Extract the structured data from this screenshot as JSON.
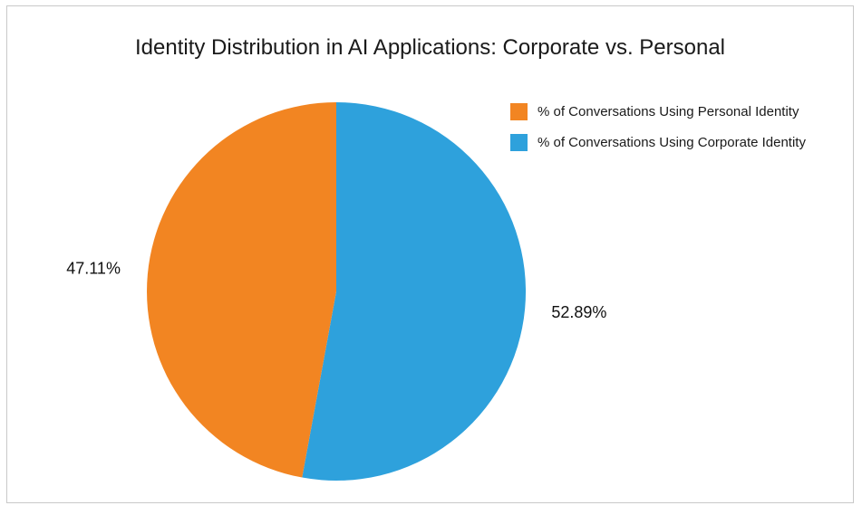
{
  "chart_data": {
    "type": "pie",
    "title": "Identity Distribution in AI Applications: Corporate vs. Personal",
    "slices": [
      {
        "label": "% of Conversations Using Corporate Identity",
        "value": 52.89,
        "display": "52.89%",
        "color": "#2ea1dc"
      },
      {
        "label": "% of Conversations Using Personal Identity",
        "value": 47.11,
        "display": "47.11%",
        "color": "#f28522"
      }
    ],
    "legend": {
      "placement": "top-right",
      "entries": [
        {
          "label": "% of Conversations Using Personal Identity",
          "color": "#f28522"
        },
        {
          "label": "% of Conversations Using Corporate Identity",
          "color": "#2ea1dc"
        }
      ]
    }
  }
}
